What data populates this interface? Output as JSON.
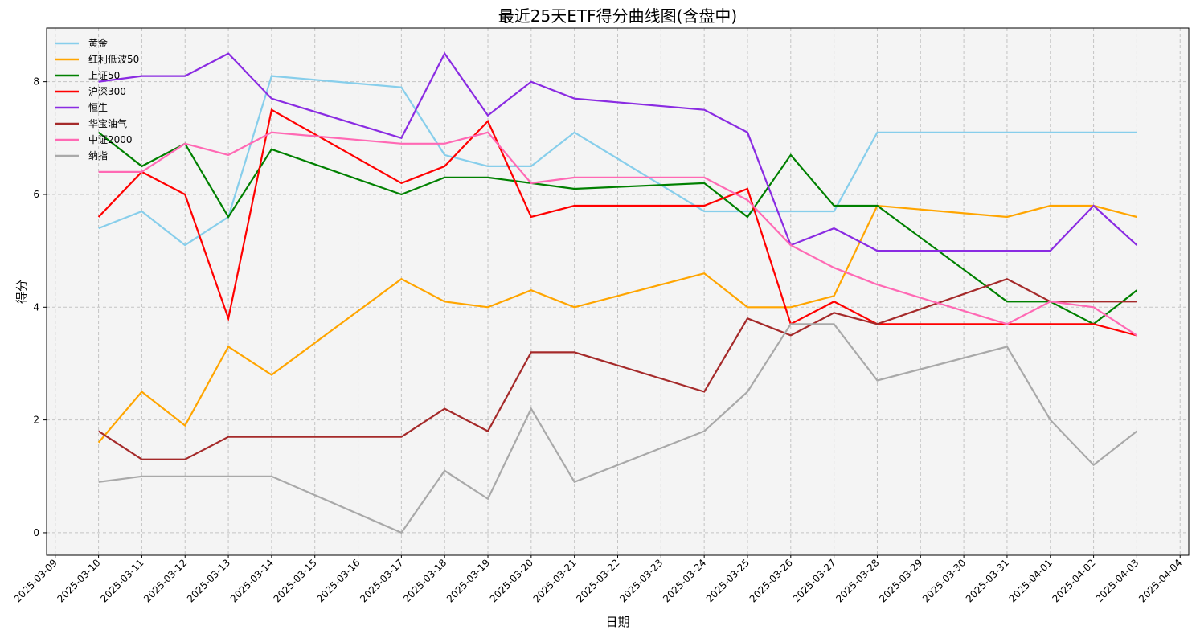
{
  "chart_data": {
    "type": "line",
    "title": "最近25天ETF得分曲线图(含盘中)",
    "xlabel": "日期",
    "ylabel": "得分",
    "ylim": [
      -0.4,
      8.95
    ],
    "yticks": [
      0,
      2,
      4,
      6,
      8
    ],
    "grid": true,
    "legend_position": "top-left",
    "x_ticks": [
      "2025-03-09",
      "2025-03-10",
      "2025-03-11",
      "2025-03-12",
      "2025-03-13",
      "2025-03-14",
      "2025-03-15",
      "2025-03-16",
      "2025-03-17",
      "2025-03-18",
      "2025-03-19",
      "2025-03-20",
      "2025-03-21",
      "2025-03-22",
      "2025-03-23",
      "2025-03-24",
      "2025-03-25",
      "2025-03-26",
      "2025-03-27",
      "2025-03-28",
      "2025-03-29",
      "2025-03-30",
      "2025-03-31",
      "2025-04-01",
      "2025-04-02",
      "2025-04-03",
      "2025-04-04"
    ],
    "x": [
      "2025-03-10",
      "2025-03-11",
      "2025-03-12",
      "2025-03-13",
      "2025-03-14",
      "2025-03-17",
      "2025-03-18",
      "2025-03-19",
      "2025-03-20",
      "2025-03-21",
      "2025-03-24",
      "2025-03-25",
      "2025-03-26",
      "2025-03-27",
      "2025-03-28",
      "2025-03-31",
      "2025-04-01",
      "2025-04-02",
      "2025-04-03"
    ],
    "series": [
      {
        "name": "黄金",
        "color": "#87ceeb",
        "values": [
          5.4,
          5.7,
          5.1,
          5.6,
          8.1,
          7.9,
          6.7,
          6.5,
          6.5,
          7.1,
          5.7,
          5.7,
          5.7,
          5.7,
          7.1,
          7.1,
          7.1,
          7.1,
          7.1
        ]
      },
      {
        "name": "红利低波50",
        "color": "#ffa500",
        "values": [
          1.6,
          2.5,
          1.9,
          3.3,
          2.8,
          4.5,
          4.1,
          4.0,
          4.3,
          4.0,
          4.6,
          4.0,
          4.0,
          4.2,
          5.8,
          5.6,
          5.8,
          5.8,
          5.6
        ]
      },
      {
        "name": "上证50",
        "color": "#008000",
        "values": [
          7.1,
          6.5,
          6.9,
          5.6,
          6.8,
          6.0,
          6.3,
          6.3,
          6.2,
          6.1,
          6.2,
          5.6,
          6.7,
          5.8,
          5.8,
          4.1,
          4.1,
          3.7,
          4.3
        ]
      },
      {
        "name": "沪深300",
        "color": "#ff0000",
        "values": [
          5.6,
          6.4,
          6.0,
          3.8,
          7.5,
          6.2,
          6.5,
          7.3,
          5.6,
          5.8,
          5.8,
          6.1,
          3.7,
          4.1,
          3.7,
          3.7,
          3.7,
          3.7,
          3.5
        ]
      },
      {
        "name": "恒生",
        "color": "#8a2be2",
        "values": [
          8.0,
          8.1,
          8.1,
          8.5,
          7.7,
          7.0,
          8.5,
          7.4,
          8.0,
          7.7,
          7.5,
          7.1,
          5.1,
          5.4,
          5.0,
          5.0,
          5.0,
          5.8,
          5.1
        ]
      },
      {
        "name": "华宝油气",
        "color": "#a52a2a",
        "values": [
          1.8,
          1.3,
          1.3,
          1.7,
          1.7,
          1.7,
          2.2,
          1.8,
          3.2,
          3.2,
          2.5,
          3.8,
          3.5,
          3.9,
          3.7,
          4.5,
          4.1,
          4.1,
          4.1
        ]
      },
      {
        "name": "中证2000",
        "color": "#ff69b4",
        "values": [
          6.4,
          6.4,
          6.9,
          6.7,
          7.1,
          6.9,
          6.9,
          7.1,
          6.2,
          6.3,
          6.3,
          5.9,
          5.1,
          4.7,
          4.4,
          3.7,
          4.1,
          4.0,
          3.5
        ]
      },
      {
        "name": "纳指",
        "color": "#a9a9a9",
        "values": [
          0.9,
          1.0,
          1.0,
          1.0,
          1.0,
          0.0,
          1.1,
          0.6,
          2.2,
          0.9,
          1.8,
          2.5,
          3.7,
          3.7,
          2.7,
          3.3,
          2.0,
          1.2,
          1.8
        ]
      }
    ]
  }
}
